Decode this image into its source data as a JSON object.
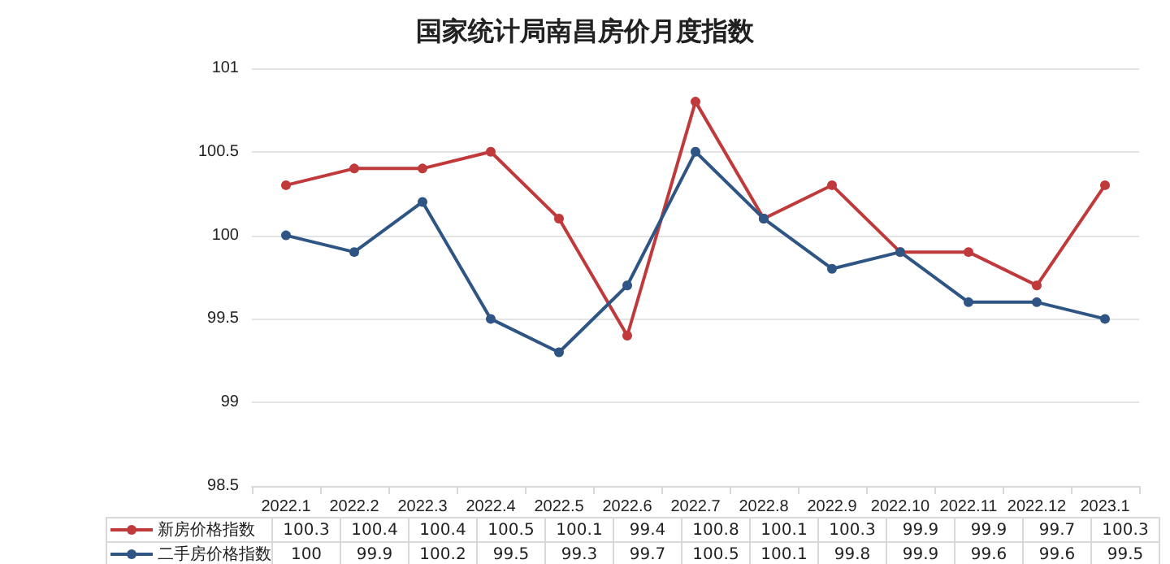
{
  "chart_data": {
    "type": "line",
    "title": "国家统计局南昌房价月度指数",
    "categories": [
      "2022.1",
      "2022.2",
      "2022.3",
      "2022.4",
      "2022.5",
      "2022.6",
      "2022.7",
      "2022.8",
      "2022.9",
      "2022.10",
      "2022.11",
      "2022.12",
      "2023.1"
    ],
    "series": [
      {
        "name": "新房价格指数",
        "color": "#c0393b",
        "values": [
          100.3,
          100.4,
          100.4,
          100.5,
          100.1,
          99.4,
          100.8,
          100.1,
          100.3,
          99.9,
          99.9,
          99.7,
          100.3
        ]
      },
      {
        "name": "二手房价格指数",
        "color": "#2e5583",
        "values": [
          100,
          99.9,
          100.2,
          99.5,
          99.3,
          99.7,
          100.5,
          100.1,
          99.8,
          99.9,
          99.6,
          99.6,
          99.5
        ]
      }
    ],
    "ylim": [
      98.5,
      101
    ],
    "yticks": [
      98.5,
      99,
      99.5,
      100,
      100.5,
      101
    ],
    "grid": "y",
    "legend": "bottom",
    "marker": "circle",
    "line_style": "solid",
    "data_labels": true
  }
}
